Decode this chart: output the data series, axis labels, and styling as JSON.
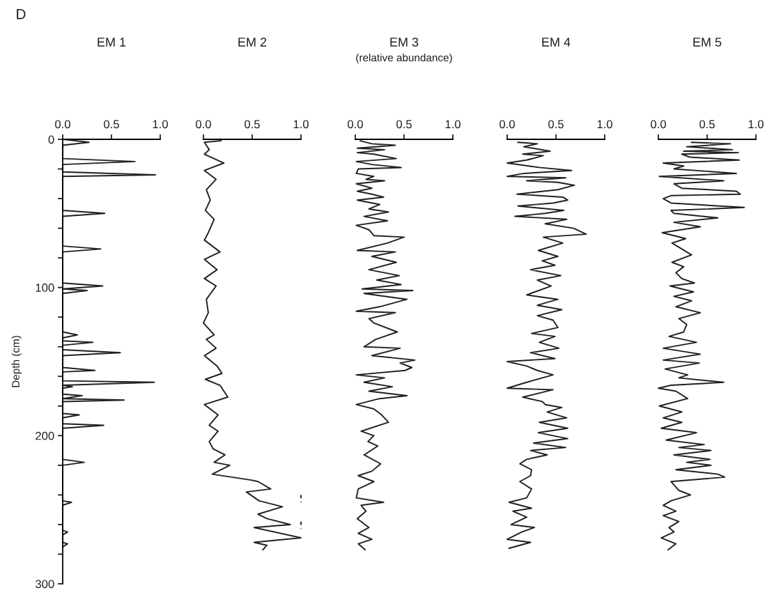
{
  "chart_data": [
    {
      "type": "line",
      "title": "EM 1",
      "ylabel": "Depth (cm)",
      "annotations": [
        "D"
      ],
      "xlim": [
        0,
        1
      ],
      "xticks": [
        {
          "value": 0,
          "label": "0.0"
        },
        {
          "value": 0.5,
          "label": "0.5"
        },
        {
          "value": 1,
          "label": "1.0"
        }
      ],
      "ylim": [
        300,
        0
      ],
      "yticks": [
        0,
        {
          "value": 20,
          "label": null
        },
        {
          "value": 40,
          "label": null
        },
        {
          "value": 60,
          "label": null
        },
        {
          "value": 80,
          "label": null
        },
        100,
        {
          "value": 120,
          "label": null
        },
        {
          "value": 140,
          "label": null
        },
        {
          "value": 160,
          "label": null
        },
        {
          "value": 180,
          "label": null
        },
        200,
        {
          "value": 220,
          "label": null
        },
        {
          "value": 240,
          "label": null
        },
        {
          "value": 260,
          "label": null
        },
        {
          "value": 280,
          "label": null
        },
        300
      ],
      "series": [
        {
          "color": "#231f20",
          "x": [
            0,
            0.27,
            0,
            0,
            0.74,
            0,
            0,
            0.95,
            0,
            0,
            0.43,
            0,
            0,
            0.39,
            0,
            0,
            0.41,
            0,
            0.25,
            0,
            0,
            0.15,
            0,
            0,
            0.31,
            0,
            0,
            0.59,
            0,
            0,
            0.33,
            0,
            0,
            0.94,
            0,
            0.1,
            0,
            0,
            0.2,
            0,
            0.63,
            0,
            0,
            0.17,
            0,
            0,
            0.42,
            0,
            0,
            0.22,
            0,
            0,
            0.09,
            0,
            0,
            0.05,
            0,
            0,
            0.05,
            0,
            0
          ],
          "values": [
            0,
            2,
            4,
            13,
            15,
            17,
            22,
            24,
            25,
            48,
            50,
            52,
            72,
            74,
            76,
            97,
            99,
            101,
            102,
            104,
            130,
            132,
            134,
            136,
            137,
            139,
            142,
            144,
            146,
            154,
            156,
            157,
            163,
            164,
            166,
            167,
            168,
            172,
            173,
            175,
            176,
            177,
            185,
            186,
            188,
            192,
            193,
            195,
            216,
            218,
            220,
            244,
            245,
            247,
            264,
            265,
            267,
            272,
            273,
            275,
            276
          ]
        }
      ]
    },
    {
      "type": "line",
      "title": "EM 2",
      "tick_labels": "x",
      "xlim": [
        0,
        1
      ],
      "xticks": [
        {
          "value": 0,
          "label": "0.0"
        },
        {
          "value": 0.5,
          "label": "0.5"
        },
        {
          "value": 1,
          "label": "1.0"
        }
      ],
      "ylim": [
        300,
        0
      ],
      "series": [
        {
          "color": "#231f20",
          "x": [
            0.18,
            0.01,
            0.06,
            0.01,
            0.21,
            0.01,
            0.13,
            0.03,
            0.07,
            0.02,
            0.11,
            0.05,
            0.01,
            0.17,
            0.01,
            0.14,
            0.01,
            0.13,
            0.03,
            0.05,
            0.0,
            0.11,
            0.03,
            0.13,
            0.01,
            0.14,
            0.19,
            0.02,
            0.17,
            0.25,
            0.01,
            0.15,
            0.06,
            0.15,
            0.06,
            0.1,
            0.22,
            0.11,
            0.27,
            0.09,
            0.29,
            0.49,
            0.56,
            0.69,
            0.44,
            0.57,
            0.81,
            0.56,
            0.65,
            0.89,
            0.52,
            1.0,
            0.52,
            0.65,
            0.61
          ],
          "values": [
            1,
            2,
            7,
            10,
            16,
            21,
            27,
            34,
            41,
            48,
            54,
            63,
            68,
            76,
            81,
            88,
            94,
            99,
            108,
            117,
            124,
            132,
            135,
            141,
            146,
            153,
            158,
            162,
            166,
            174,
            179,
            186,
            193,
            197,
            204,
            209,
            213,
            218,
            220,
            226,
            228,
            230,
            231,
            236,
            238,
            244,
            248,
            253,
            256,
            260,
            262,
            269,
            272,
            274,
            277
          ]
        },
        {
          "color": "#231f20",
          "line_style": "dashed",
          "x": [
            1,
            1
          ],
          "values": [
            240,
            245
          ]
        },
        {
          "color": "#231f20",
          "line_style": "dashed",
          "x": [
            1,
            1
          ],
          "values": [
            258,
            263
          ]
        }
      ]
    },
    {
      "type": "line",
      "title": "EM 3",
      "subtitle": "(relative abundance)",
      "tick_labels": "x",
      "xlim": [
        0,
        1
      ],
      "xticks": [
        {
          "value": 0,
          "label": "0.0"
        },
        {
          "value": 0.5,
          "label": "0.5"
        },
        {
          "value": 1,
          "label": "1.0"
        }
      ],
      "ylim": [
        300,
        0
      ],
      "series": [
        {
          "color": "#231f20",
          "x": [
            0.05,
            0.17,
            0.41,
            0.02,
            0.3,
            0.02,
            0.19,
            0.42,
            0.01,
            0.17,
            0.47,
            0.03,
            0.01,
            0.19,
            0.11,
            0.3,
            0.01,
            0.17,
            0.02,
            0.17,
            0.29,
            0.02,
            0.25,
            0.14,
            0.34,
            0.09,
            0.33,
            0.01,
            0.14,
            0.19,
            0.5,
            0.33,
            0.02,
            0.41,
            0.17,
            0.42,
            0.14,
            0.45,
            0.22,
            0.47,
            0.07,
            0.59,
            0.09,
            0.53,
            0.25,
            0.01,
            0.41,
            0.14,
            0.19,
            0.43,
            0.21,
            0.09,
            0.46,
            0.17,
            0.61,
            0.46,
            0.58,
            0.51,
            0.01,
            0.3,
            0.09,
            0.38,
            0.14,
            0.53,
            0.25,
            0.01,
            0.19,
            0.27,
            0.34,
            0.06,
            0.19,
            0.13,
            0.23,
            0.09,
            0.26,
            0.17,
            0.03,
            0.19,
            0.03,
            0.01,
            0.29,
            0.06,
            0.11,
            0.02,
            0.14,
            0.03,
            0.17,
            0.03,
            0.1
          ],
          "values": [
            1,
            3,
            4,
            6,
            7,
            9,
            10,
            13,
            15,
            17,
            19,
            20,
            23,
            25,
            27,
            28,
            30,
            33,
            35,
            37,
            39,
            41,
            44,
            47,
            49,
            52,
            55,
            58,
            61,
            65,
            66,
            70,
            75,
            76,
            79,
            83,
            88,
            92,
            95,
            98,
            101,
            102,
            104,
            108,
            113,
            116,
            117,
            121,
            124,
            130,
            135,
            140,
            141,
            146,
            149,
            151,
            154,
            156,
            159,
            161,
            164,
            167,
            170,
            173,
            175,
            179,
            182,
            186,
            191,
            197,
            200,
            204,
            207,
            213,
            219,
            224,
            227,
            231,
            236,
            242,
            245,
            247,
            251,
            256,
            262,
            266,
            270,
            273,
            277
          ]
        }
      ]
    },
    {
      "type": "line",
      "title": "EM 4",
      "tick_labels": "x",
      "xlim": [
        0,
        1
      ],
      "xticks": [
        {
          "value": 0,
          "label": "0.0"
        },
        {
          "value": 0.5,
          "label": "0.5"
        },
        {
          "value": 1,
          "label": "1.0"
        }
      ],
      "ylim": [
        300,
        0
      ],
      "series": [
        {
          "color": "#231f20",
          "x": [
            0.11,
            0.31,
            0.17,
            0.44,
            0.16,
            0.37,
            0.2,
            0.0,
            0.33,
            0.66,
            0.17,
            0.0,
            0.6,
            0.2,
            0.52,
            0.69,
            0.52,
            0.1,
            0.57,
            0.62,
            0.47,
            0.11,
            0.58,
            0.39,
            0.08,
            0.61,
            0.39,
            0.68,
            0.81,
            0.37,
            0.57,
            0.32,
            0.52,
            0.36,
            0.49,
            0.24,
            0.55,
            0.31,
            0.45,
            0.2,
            0.52,
            0.31,
            0.56,
            0.31,
            0.47,
            0.52,
            0.25,
            0.49,
            0.33,
            0.53,
            0.24,
            0.49,
            0.0,
            0.2,
            0.31,
            0.47,
            0.2,
            0.0,
            0.47,
            0.16,
            0.36,
            0.39,
            0.56,
            0.41,
            0.61,
            0.33,
            0.62,
            0.32,
            0.62,
            0.27,
            0.6,
            0.24,
            0.41,
            0.2,
            0.13,
            0.25,
            0.24,
            0.13,
            0.25,
            0.2,
            0.02,
            0.25,
            0.06,
            0.2,
            0.04,
            0.28,
            0.15,
            0.0,
            0.24,
            0.02
          ],
          "values": [
            2,
            3,
            5,
            8,
            10,
            11,
            14,
            16,
            19,
            21,
            23,
            25,
            26,
            28,
            29,
            31,
            34,
            37,
            39,
            41,
            43,
            45,
            48,
            50,
            52,
            54,
            57,
            60,
            64,
            66,
            70,
            75,
            79,
            82,
            85,
            88,
            92,
            95,
            99,
            105,
            108,
            112,
            115,
            119,
            122,
            127,
            131,
            133,
            137,
            141,
            144,
            148,
            150,
            153,
            156,
            159,
            164,
            168,
            169,
            174,
            177,
            179,
            181,
            184,
            188,
            191,
            195,
            198,
            202,
            205,
            208,
            210,
            213,
            216,
            219,
            223,
            227,
            231,
            236,
            242,
            245,
            249,
            251,
            255,
            260,
            262,
            265,
            270,
            272,
            276
          ]
        }
      ]
    },
    {
      "type": "line",
      "title": "EM 5",
      "tick_labels": "x",
      "xlim": [
        0,
        1
      ],
      "xticks": [
        {
          "value": 0,
          "label": "0.0"
        },
        {
          "value": 0.5,
          "label": "0.5"
        },
        {
          "value": 1,
          "label": "1.0"
        }
      ],
      "ylim": [
        300,
        0
      ],
      "series": [
        {
          "color": "#231f20",
          "x": [
            0.34,
            0.74,
            0.29,
            0.76,
            0.26,
            0.82,
            0.24,
            0.32,
            0.83,
            0.05,
            0.26,
            0.16,
            0.8,
            0.01,
            0.67,
            0.16,
            0.24,
            0.8,
            0.84,
            0.13,
            0.05,
            0.13,
            0.88,
            0.13,
            0.16,
            0.61,
            0.16,
            0.43,
            0.04,
            0.28,
            0.14,
            0.24,
            0.34,
            0.14,
            0.26,
            0.18,
            0.24,
            0.37,
            0.12,
            0.36,
            0.16,
            0.34,
            0.18,
            0.43,
            0.21,
            0.29,
            0.26,
            0.11,
            0.39,
            0.05,
            0.43,
            0.05,
            0.42,
            0.07,
            0.3,
            0.21,
            0.67,
            0.13,
            0.0,
            0.18,
            0.3,
            0.01,
            0.24,
            0.05,
            0.24,
            0.03,
            0.39,
            0.08,
            0.47,
            0.21,
            0.54,
            0.16,
            0.53,
            0.29,
            0.54,
            0.18,
            0.61,
            0.68,
            0.13,
            0.17,
            0.21,
            0.33,
            0.13,
            0.05,
            0.18,
            0.05,
            0.21,
            0.11,
            0.16,
            0.03,
            0.18,
            0.1
          ],
          "values": [
            2,
            3,
            5,
            7,
            8,
            9,
            10,
            12,
            14,
            16,
            18,
            20,
            23,
            25,
            28,
            30,
            33,
            35,
            37,
            38,
            40,
            43,
            46,
            48,
            50,
            53,
            56,
            59,
            63,
            67,
            70,
            74,
            78,
            83,
            86,
            90,
            94,
            97,
            99,
            103,
            106,
            109,
            113,
            117,
            121,
            125,
            130,
            133,
            137,
            141,
            145,
            149,
            151,
            155,
            159,
            161,
            164,
            166,
            168,
            170,
            175,
            180,
            184,
            188,
            191,
            195,
            198,
            203,
            206,
            208,
            210,
            213,
            216,
            218,
            220,
            223,
            226,
            228,
            231,
            234,
            237,
            240,
            244,
            247,
            251,
            254,
            258,
            262,
            265,
            269,
            273,
            277
          ]
        }
      ]
    }
  ]
}
